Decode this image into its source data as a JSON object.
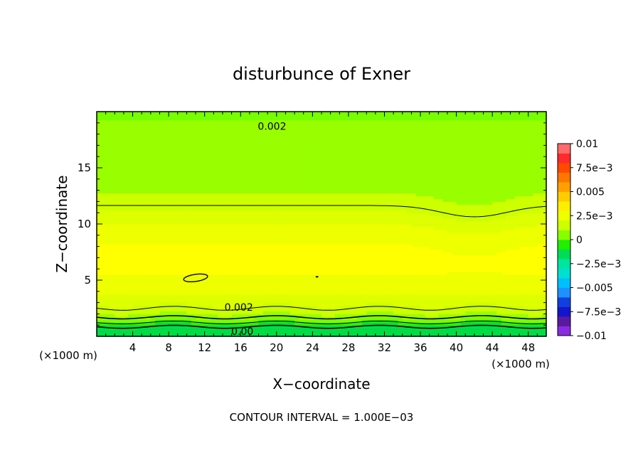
{
  "chart_data": {
    "type": "heatmap",
    "title": "disturbunce of Exner",
    "xlabel": "X−coordinate",
    "ylabel": "Z−coordinate",
    "x_unit": "(×1000 m)",
    "y_unit": "(×1000 m)",
    "xlim": [
      0,
      50
    ],
    "ylim": [
      0,
      20
    ],
    "x_ticks": [
      4,
      8,
      12,
      16,
      20,
      24,
      28,
      32,
      36,
      40,
      44,
      48
    ],
    "y_ticks": [
      5,
      10,
      15
    ],
    "footer": "CONTOUR INTERVAL = 1.000E−03",
    "colorbar": {
      "min": -0.01,
      "max": 0.01,
      "labels": [
        "0.01",
        "7.5e−3",
        "0.005",
        "2.5e−3",
        "0",
        "−2.5e−3",
        "−0.005",
        "−7.5e−3",
        "−0.01"
      ],
      "colors": [
        "#8a2be2",
        "#5a1aa0",
        "#1515cc",
        "#1040e0",
        "#1e90ff",
        "#00bfff",
        "#00e0d0",
        "#00e5a0",
        "#00dd55",
        "#22ee00",
        "#88ff00",
        "#ccff00",
        "#eeff00",
        "#ffee00",
        "#ffcc00",
        "#ffa000",
        "#ff7700",
        "#ff4a00",
        "#ff2a2a",
        "#ff6a6a"
      ]
    },
    "contour_labels": [
      {
        "text": "0.002",
        "x": 19.5,
        "z": 18.7
      },
      {
        "text": "0.002",
        "x": 15.8,
        "z": 2.6
      },
      {
        "text": "0.00",
        "x": 16.2,
        "z": 0.45
      }
    ],
    "bands": [
      {
        "value": 0.0045,
        "color": "#ffff00"
      },
      {
        "value": 0.0038,
        "color": "#eeff00"
      },
      {
        "value": 0.0032,
        "color": "#ddff00"
      },
      {
        "value": 0.0025,
        "color": "#ccff00"
      },
      {
        "value": 0.0018,
        "color": "#99ff00"
      },
      {
        "value": 0.0012,
        "color": "#77ff00"
      },
      {
        "value": 0.0006,
        "color": "#33ee00"
      },
      {
        "value": 0.0,
        "color": "#00dd44"
      }
    ]
  }
}
